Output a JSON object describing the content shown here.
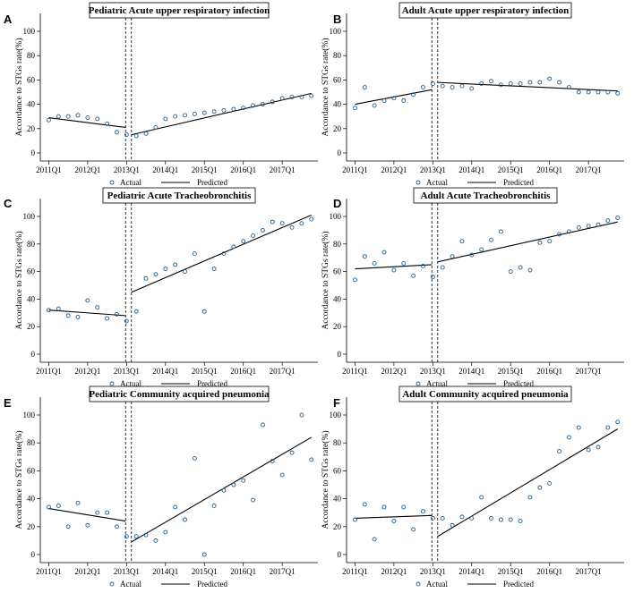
{
  "chart_data": [
    {
      "letter": "A",
      "type": "scatter",
      "title": "Pediatric Acute upper respiratory infection",
      "ylabel": "Accordance to STGs rate(%)",
      "xlabel": "",
      "ylim": [
        0,
        100
      ],
      "yticks": [
        0,
        20,
        40,
        60,
        80,
        100
      ],
      "xticks": [
        {
          "x": 0,
          "label": "2011Q1"
        },
        {
          "x": 4,
          "label": "2012Q1"
        },
        {
          "x": 8,
          "label": "2013Q1"
        },
        {
          "x": 12,
          "label": "2014Q1"
        },
        {
          "x": 16,
          "label": "2015Q1"
        },
        {
          "x": 20,
          "label": "2016Q1"
        },
        {
          "x": 24,
          "label": "2017Q1"
        }
      ],
      "xlim": [
        -0.5,
        27.3
      ],
      "interventions": [
        7.9,
        8.5
      ],
      "series": [
        {
          "name": "Actual",
          "x": [
            0,
            1,
            2,
            3,
            4,
            5,
            6,
            7,
            8,
            9,
            10,
            11,
            12,
            13,
            14,
            15,
            16,
            17,
            18,
            19,
            20,
            21,
            22,
            23,
            24,
            25,
            26,
            27
          ],
          "values": [
            27,
            30,
            30,
            31,
            29,
            28,
            24,
            17,
            15,
            14,
            16,
            21,
            28,
            30,
            31,
            32,
            33,
            34,
            35,
            36,
            37,
            39,
            40,
            42,
            45,
            46,
            46,
            47
          ]
        },
        {
          "name": "Predicted",
          "segments": [
            {
              "x": [
                0,
                7.9
              ],
              "y": [
                29,
                21
              ]
            },
            {
              "x": [
                8.5,
                27
              ],
              "y": [
                15,
                49
              ]
            }
          ]
        }
      ],
      "legend": [
        "Actual",
        "Predicted"
      ]
    },
    {
      "letter": "B",
      "type": "scatter",
      "title": "Adult Acute upper respiratory infection",
      "ylabel": "Accordance to STGs rate(%)",
      "xlabel": "",
      "ylim": [
        0,
        100
      ],
      "yticks": [
        0,
        20,
        40,
        60,
        80,
        100
      ],
      "xticks": [
        {
          "x": 0,
          "label": "2011Q1"
        },
        {
          "x": 4,
          "label": "2012Q1"
        },
        {
          "x": 8,
          "label": "2013Q1"
        },
        {
          "x": 12,
          "label": "2014Q1"
        },
        {
          "x": 16,
          "label": "2015Q1"
        },
        {
          "x": 20,
          "label": "2016Q1"
        },
        {
          "x": 24,
          "label": "2017Q1"
        }
      ],
      "xlim": [
        -0.5,
        27.3
      ],
      "interventions": [
        7.9,
        8.5
      ],
      "series": [
        {
          "name": "Actual",
          "x": [
            0,
            1,
            2,
            3,
            4,
            5,
            6,
            7,
            8,
            9,
            10,
            11,
            12,
            13,
            14,
            15,
            16,
            17,
            18,
            19,
            20,
            21,
            22,
            23,
            24,
            25,
            26,
            27
          ],
          "values": [
            37,
            54,
            39,
            43,
            45,
            43,
            48,
            54,
            57,
            55,
            54,
            55,
            53,
            57,
            59,
            56,
            57,
            57,
            58,
            58,
            61,
            58,
            54,
            50,
            50,
            50,
            50,
            49
          ]
        },
        {
          "name": "Predicted",
          "segments": [
            {
              "x": [
                0,
                7.9
              ],
              "y": [
                40,
                52
              ]
            },
            {
              "x": [
                8.5,
                27
              ],
              "y": [
                58,
                51
              ]
            }
          ]
        }
      ],
      "legend": [
        "Actual",
        "Predicted"
      ]
    },
    {
      "letter": "C",
      "type": "scatter",
      "title": "Pediatric Acute Tracheobronchitis",
      "ylabel": "Accordance to STGs rate(%)",
      "xlabel": "",
      "ylim": [
        0,
        100
      ],
      "yticks": [
        0,
        20,
        40,
        60,
        80,
        100
      ],
      "xticks": [
        {
          "x": 0,
          "label": "2011Q1"
        },
        {
          "x": 4,
          "label": "2012Q1"
        },
        {
          "x": 8,
          "label": "2013Q1"
        },
        {
          "x": 12,
          "label": "2014Q1"
        },
        {
          "x": 16,
          "label": "2015Q1"
        },
        {
          "x": 20,
          "label": "2016Q1"
        },
        {
          "x": 24,
          "label": "2017Q1"
        }
      ],
      "xlim": [
        -0.5,
        27.3
      ],
      "interventions": [
        7.9,
        8.5
      ],
      "series": [
        {
          "name": "Actual",
          "x": [
            0,
            1,
            2,
            3,
            4,
            5,
            6,
            7,
            8,
            9,
            10,
            11,
            12,
            13,
            14,
            15,
            16,
            17,
            18,
            19,
            20,
            21,
            22,
            23,
            24,
            25,
            26,
            27
          ],
          "values": [
            32,
            33,
            28,
            27,
            39,
            34,
            26,
            29,
            24,
            31,
            55,
            58,
            62,
            65,
            60,
            73,
            31,
            62,
            73,
            78,
            82,
            86,
            90,
            96,
            95,
            92,
            95,
            98
          ]
        },
        {
          "name": "Predicted",
          "segments": [
            {
              "x": [
                0,
                7.9
              ],
              "y": [
                32,
                28
              ]
            },
            {
              "x": [
                8.5,
                27
              ],
              "y": [
                45,
                101
              ]
            }
          ]
        }
      ],
      "legend": [
        "Actual",
        "Predicted"
      ]
    },
    {
      "letter": "D",
      "type": "scatter",
      "title": "Adult Acute Tracheobronchitis",
      "ylabel": "Accordance to STGs rate(%)",
      "xlabel": "",
      "ylim": [
        0,
        100
      ],
      "yticks": [
        0,
        20,
        40,
        60,
        80,
        100
      ],
      "xticks": [
        {
          "x": 0,
          "label": "2011Q1"
        },
        {
          "x": 4,
          "label": "2012Q1"
        },
        {
          "x": 8,
          "label": "2013Q1"
        },
        {
          "x": 12,
          "label": "2014Q1"
        },
        {
          "x": 16,
          "label": "2015Q1"
        },
        {
          "x": 20,
          "label": "2016Q1"
        },
        {
          "x": 24,
          "label": "2017Q1"
        }
      ],
      "xlim": [
        -0.5,
        27.3
      ],
      "interventions": [
        7.9,
        8.5
      ],
      "series": [
        {
          "name": "Actual",
          "x": [
            0,
            1,
            2,
            3,
            4,
            5,
            6,
            7,
            8,
            9,
            10,
            11,
            12,
            13,
            14,
            15,
            16,
            17,
            18,
            19,
            20,
            21,
            22,
            23,
            24,
            25,
            26,
            27
          ],
          "values": [
            54,
            71,
            66,
            74,
            61,
            66,
            57,
            64,
            56,
            63,
            71,
            82,
            72,
            76,
            83,
            89,
            60,
            63,
            61,
            81,
            82,
            87,
            89,
            92,
            93,
            94,
            97,
            99
          ]
        },
        {
          "name": "Predicted",
          "segments": [
            {
              "x": [
                0,
                7.9
              ],
              "y": [
                62,
                65
              ]
            },
            {
              "x": [
                8.5,
                27
              ],
              "y": [
                67,
                96
              ]
            }
          ]
        }
      ],
      "legend": [
        "Actual",
        "Predicted"
      ]
    },
    {
      "letter": "E",
      "type": "scatter",
      "title": "Pediatric Community acquired pneumonia",
      "ylabel": "Accordance to STGs rate(%)",
      "xlabel": "",
      "ylim": [
        0,
        100
      ],
      "yticks": [
        0,
        20,
        40,
        60,
        80,
        100
      ],
      "xticks": [
        {
          "x": 0,
          "label": "2011Q1"
        },
        {
          "x": 4,
          "label": "2012Q1"
        },
        {
          "x": 8,
          "label": "2013Q1"
        },
        {
          "x": 12,
          "label": "2014Q1"
        },
        {
          "x": 16,
          "label": "2015Q1"
        },
        {
          "x": 20,
          "label": "2016Q1"
        },
        {
          "x": 24,
          "label": "2017Q1"
        }
      ],
      "xlim": [
        -0.5,
        27.3
      ],
      "interventions": [
        7.9,
        8.5
      ],
      "series": [
        {
          "name": "Actual",
          "x": [
            0,
            1,
            2,
            3,
            4,
            5,
            6,
            7,
            8,
            9,
            10,
            11,
            12,
            13,
            14,
            15,
            16,
            17,
            18,
            19,
            20,
            21,
            22,
            23,
            24,
            25,
            26,
            27
          ],
          "values": [
            34,
            35,
            20,
            37,
            21,
            30,
            30,
            20,
            13,
            13,
            14,
            10,
            16,
            34,
            25,
            69,
            0,
            35,
            46,
            50,
            53,
            39,
            93,
            67,
            57,
            73,
            100,
            68
          ]
        },
        {
          "name": "Predicted",
          "segments": [
            {
              "x": [
                0,
                7.9
              ],
              "y": [
                33,
                24
              ]
            },
            {
              "x": [
                8.5,
                27
              ],
              "y": [
                9,
                84
              ]
            }
          ]
        }
      ],
      "legend": [
        "Actual",
        "Predicted"
      ]
    },
    {
      "letter": "F",
      "type": "scatter",
      "title": "Adult Community acquired pneumonia",
      "ylabel": "Accordance to STGs rate(%)",
      "xlabel": "",
      "ylim": [
        0,
        100
      ],
      "yticks": [
        0,
        20,
        40,
        60,
        80,
        100
      ],
      "xticks": [
        {
          "x": 0,
          "label": "2011Q1"
        },
        {
          "x": 4,
          "label": "2012Q1"
        },
        {
          "x": 8,
          "label": "2013Q1"
        },
        {
          "x": 12,
          "label": "2014Q1"
        },
        {
          "x": 16,
          "label": "2015Q1"
        },
        {
          "x": 20,
          "label": "2016Q1"
        },
        {
          "x": 24,
          "label": "2017Q1"
        }
      ],
      "xlim": [
        -0.5,
        27.3
      ],
      "interventions": [
        7.9,
        8.5
      ],
      "series": [
        {
          "name": "Actual",
          "x": [
            0,
            1,
            2,
            3,
            4,
            5,
            6,
            7,
            8,
            9,
            10,
            11,
            12,
            13,
            14,
            15,
            16,
            17,
            18,
            19,
            20,
            21,
            22,
            23,
            24,
            25,
            26,
            27
          ],
          "values": [
            25,
            36,
            11,
            34,
            24,
            34,
            18,
            31,
            26,
            26,
            21,
            27,
            26,
            41,
            26,
            25,
            25,
            24,
            41,
            48,
            51,
            74,
            84,
            91,
            75,
            77,
            91,
            95
          ]
        },
        {
          "name": "Predicted",
          "segments": [
            {
              "x": [
                0,
                7.9
              ],
              "y": [
                26,
                28
              ]
            },
            {
              "x": [
                8.5,
                27
              ],
              "y": [
                13,
                90
              ]
            }
          ]
        }
      ],
      "legend": [
        "Actual",
        "Predicted"
      ]
    }
  ],
  "style": {
    "marker_color": "#1f5f8f",
    "line_color": "#000000",
    "frame_color": "#000000"
  }
}
